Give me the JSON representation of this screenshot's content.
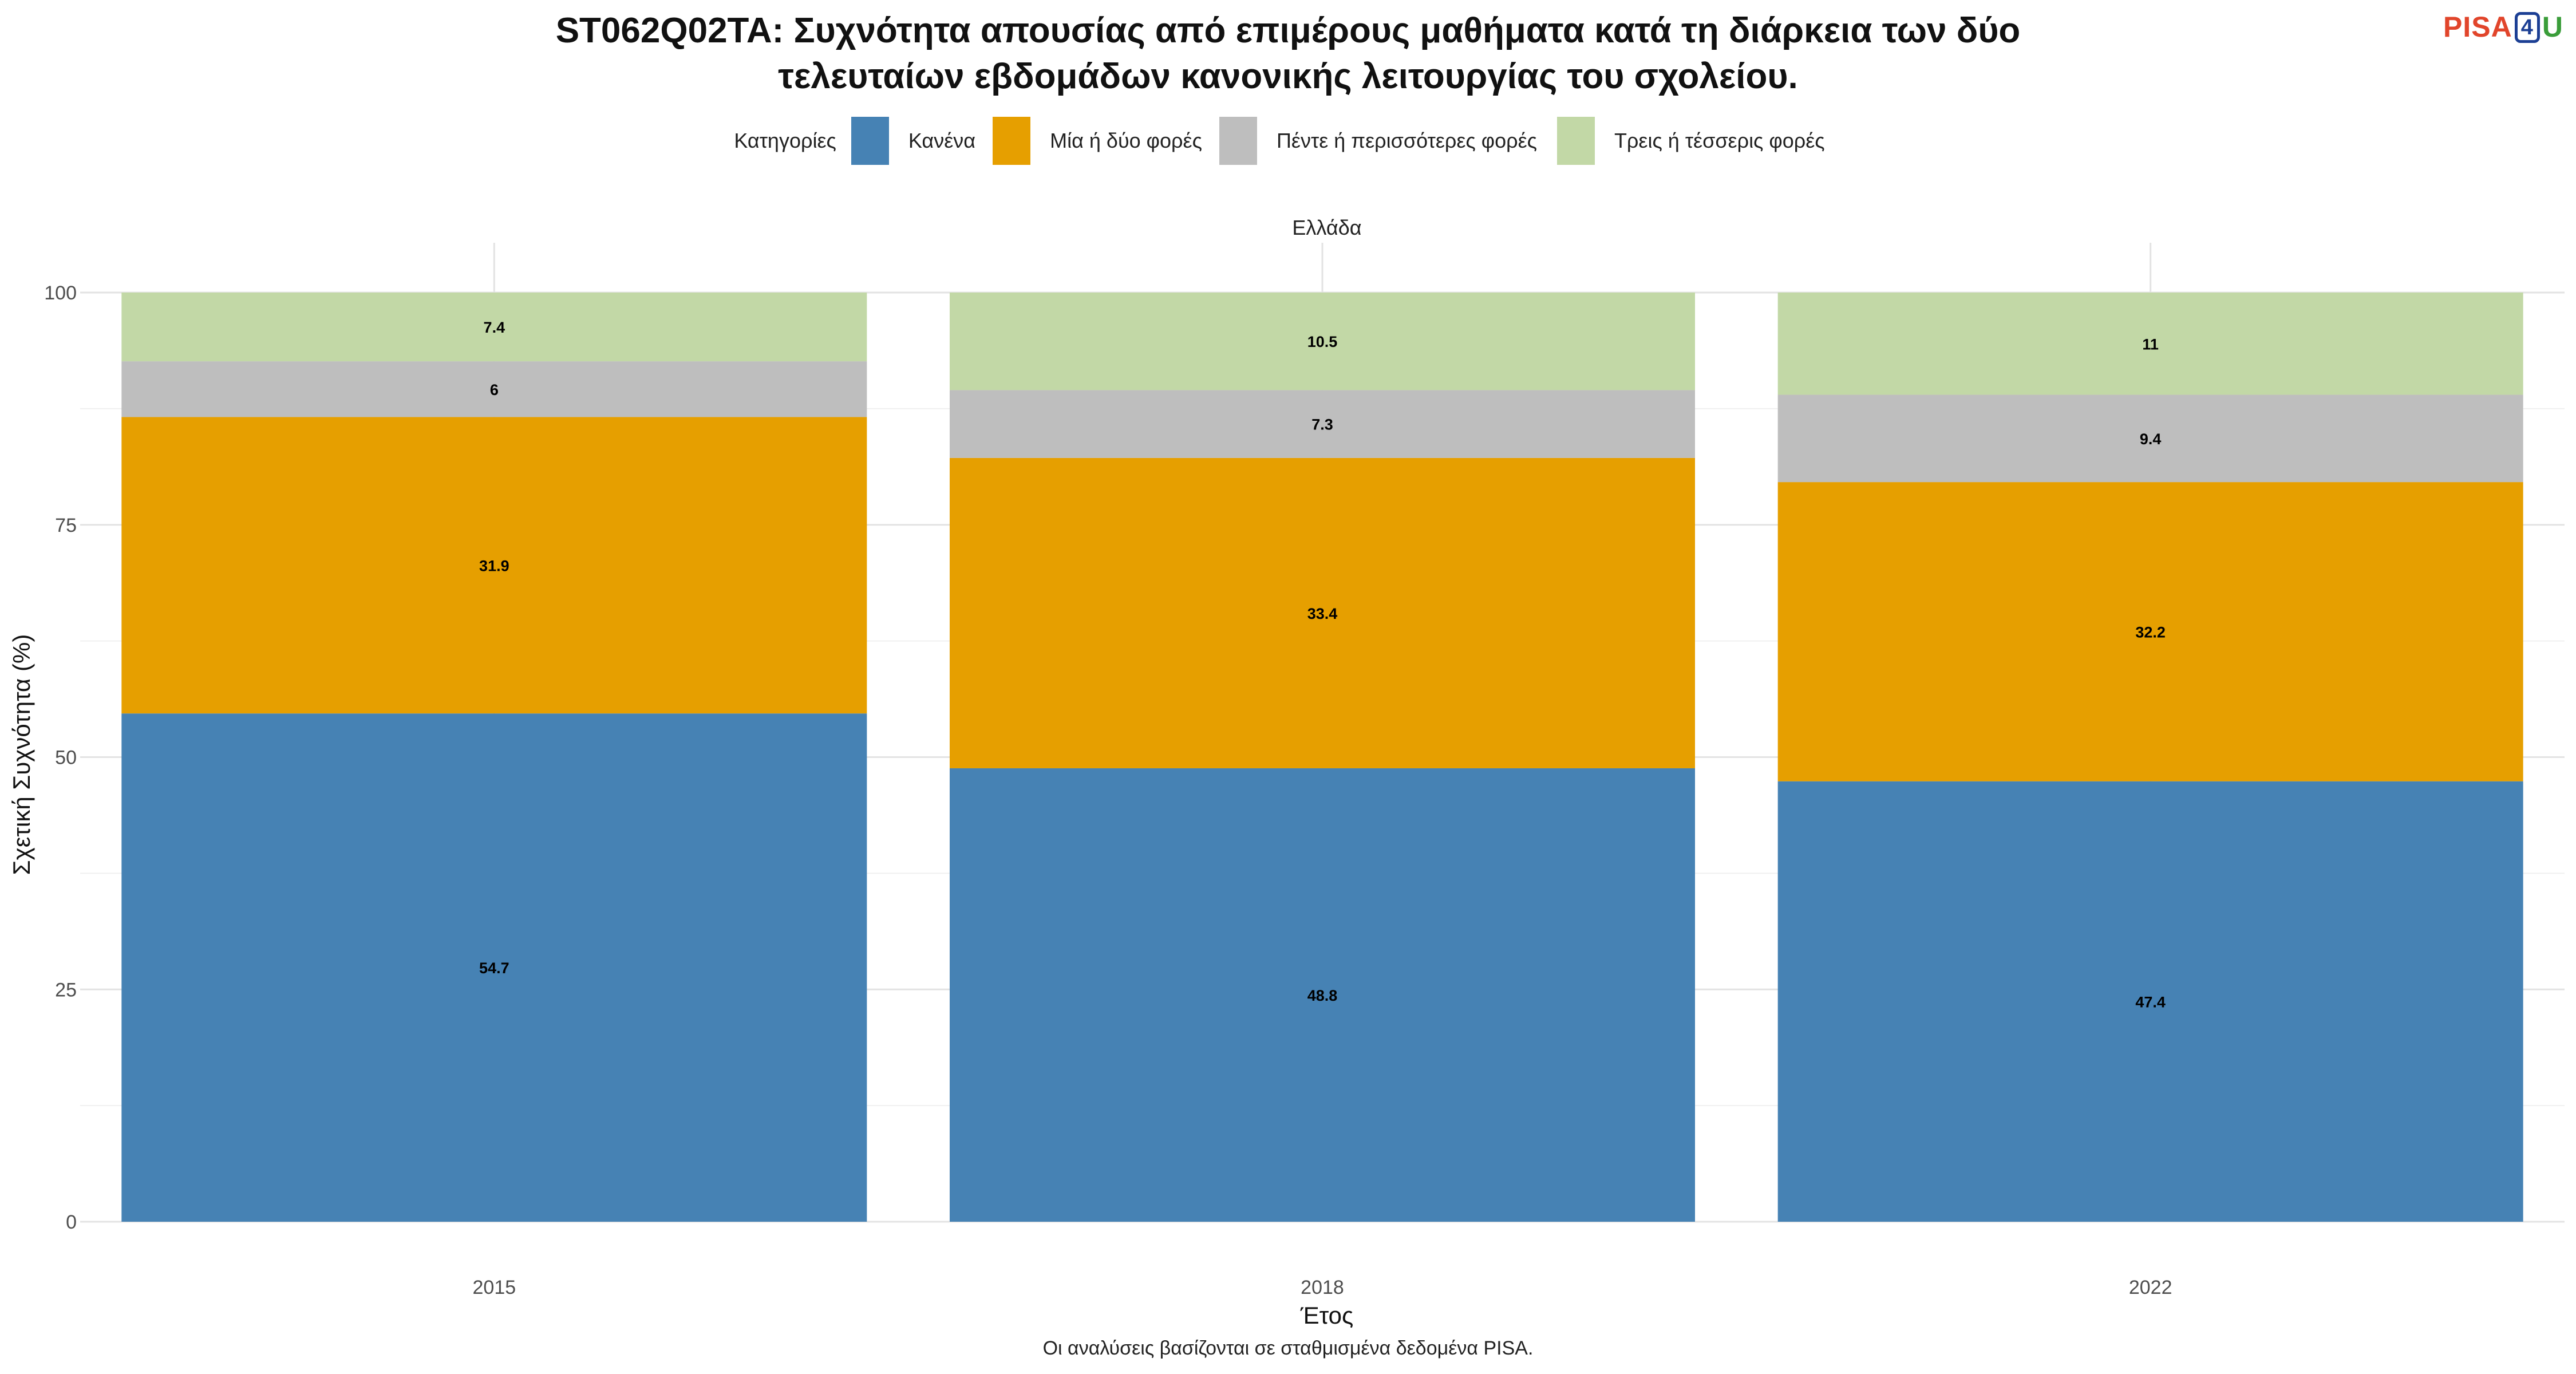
{
  "title_lines": [
    "ST062Q02TA: Συχνότητα απουσίας από επιμέρους μαθήματα κατά τη διάρκεια των δύο",
    "τελευταίων εβδομάδων κανονικής λειτουργίας του σχολείου."
  ],
  "logo": {
    "part1": "PISA",
    "part2": "4",
    "part3": "U"
  },
  "legend": {
    "title": "Κατηγορίες",
    "items": [
      {
        "label": "Κανένα",
        "color": "#4682b4"
      },
      {
        "label": "Μία ή δύο φορές",
        "color": "#e69f00"
      },
      {
        "label": "Πέντε ή περισσότερες φορές",
        "color": "#bebebe"
      },
      {
        "label": "Τρεις ή τέσσερις φορές",
        "color": "#c2d8a6"
      }
    ]
  },
  "caption": "Οι αναλύσεις βασίζονται σε σταθμισμένα δεδομένα PISA.",
  "chart_data": {
    "type": "bar",
    "stacked": true,
    "facet": "Ελλάδα",
    "categories": [
      "2015",
      "2018",
      "2022"
    ],
    "series": [
      {
        "name": "Κανένα",
        "color": "#4682b4",
        "values": [
          54.7,
          48.8,
          47.4
        ]
      },
      {
        "name": "Μία ή δύο φορές",
        "color": "#e69f00",
        "values": [
          31.9,
          33.4,
          32.2
        ]
      },
      {
        "name": "Πέντε ή περισσότερες φορές",
        "color": "#bebebe",
        "values": [
          6,
          7.3,
          9.4
        ]
      },
      {
        "name": "Τρεις ή τέσσερις φορές",
        "color": "#c2d8a6",
        "values": [
          7.4,
          10.5,
          11
        ]
      }
    ],
    "xlabel": "Έτος",
    "ylabel": "Σχετική Συχνότητα (%)",
    "ylim": [
      0,
      100
    ],
    "yticks": [
      0,
      25,
      50,
      75,
      100
    ],
    "grid": true,
    "legend_position": "top"
  }
}
